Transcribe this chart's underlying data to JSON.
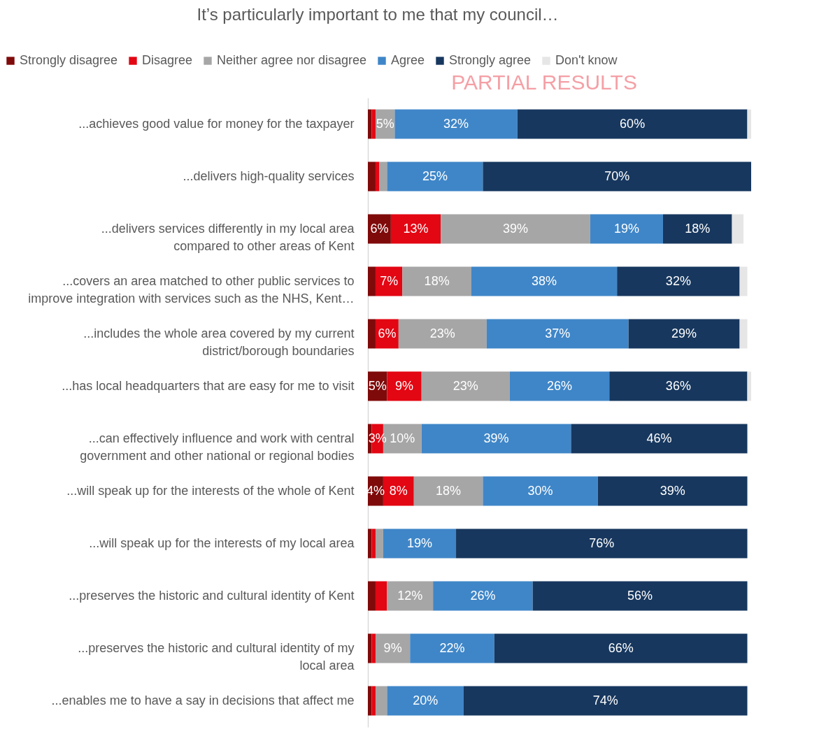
{
  "chart_data": {
    "type": "bar",
    "orientation": "horizontal",
    "stacked": true,
    "title": "It’s particularly important to me that my council…",
    "legend": "top",
    "annotations": [
      "PARTIAL RESULTS"
    ],
    "categories": [
      "...achieves good value for money for the taxpayer",
      "...delivers high-quality services",
      "...delivers services differently in my local area compared to other areas of Kent",
      "...covers an area matched to other public services to improve integration with services such as the NHS, Kent…",
      "...includes the whole area covered by my current district/borough boundaries",
      "...has local headquarters that are easy for me to visit",
      "...can effectively influence and work with central government and other national or regional bodies",
      "...will speak up for the interests of the whole of Kent",
      "...will speak up for the interests of my local area",
      "...preserves the historic and cultural identity of Kent",
      "...preserves the historic and cultural identity of my local area",
      "...enables me to have a say in decisions that affect me"
    ],
    "series": [
      {
        "name": "Strongly disagree",
        "color": "#7f0a0a",
        "values": [
          1,
          2,
          6,
          2,
          2,
          5,
          1,
          4,
          1,
          2,
          1,
          1
        ],
        "value_labels": [
          null,
          null,
          "6%",
          null,
          null,
          "5%",
          null,
          "4%",
          null,
          null,
          null,
          null
        ]
      },
      {
        "name": "Disagree",
        "color": "#e30613",
        "values": [
          1,
          1,
          13,
          7,
          6,
          9,
          3,
          8,
          1,
          3,
          1,
          1
        ],
        "value_labels": [
          null,
          null,
          "13%",
          "7%",
          "6%",
          "9%",
          "3%",
          "8%",
          null,
          null,
          null,
          null
        ]
      },
      {
        "name": "Neither agree nor disagree",
        "color": "#a6a6a6",
        "values": [
          5,
          2,
          39,
          18,
          23,
          23,
          10,
          18,
          2,
          12,
          9,
          3
        ],
        "value_labels": [
          "5%",
          null,
          "39%",
          "18%",
          "23%",
          "23%",
          "10%",
          "18%",
          null,
          "12%",
          "9%",
          null
        ]
      },
      {
        "name": "Agree",
        "color": "#3f86c8",
        "values": [
          32,
          25,
          19,
          38,
          37,
          26,
          39,
          30,
          19,
          26,
          22,
          20
        ],
        "value_labels": [
          "32%",
          "25%",
          "19%",
          "38%",
          "37%",
          "26%",
          "39%",
          "30%",
          "19%",
          "26%",
          "22%",
          "20%"
        ]
      },
      {
        "name": "Strongly agree",
        "color": "#17375e",
        "values": [
          60,
          70,
          18,
          32,
          29,
          36,
          46,
          39,
          76,
          56,
          66,
          74
        ],
        "value_labels": [
          "60%",
          "70%",
          "18%",
          "32%",
          "29%",
          "36%",
          "46%",
          "39%",
          "76%",
          "56%",
          "66%",
          "74%"
        ]
      },
      {
        "name": "Don't know",
        "color": "#e6e6e6",
        "values": [
          1,
          0,
          3,
          2,
          2,
          1,
          0,
          0,
          0,
          0,
          0,
          0
        ],
        "value_labels": [
          null,
          null,
          null,
          null,
          null,
          null,
          null,
          null,
          null,
          null,
          null,
          null
        ]
      }
    ]
  }
}
